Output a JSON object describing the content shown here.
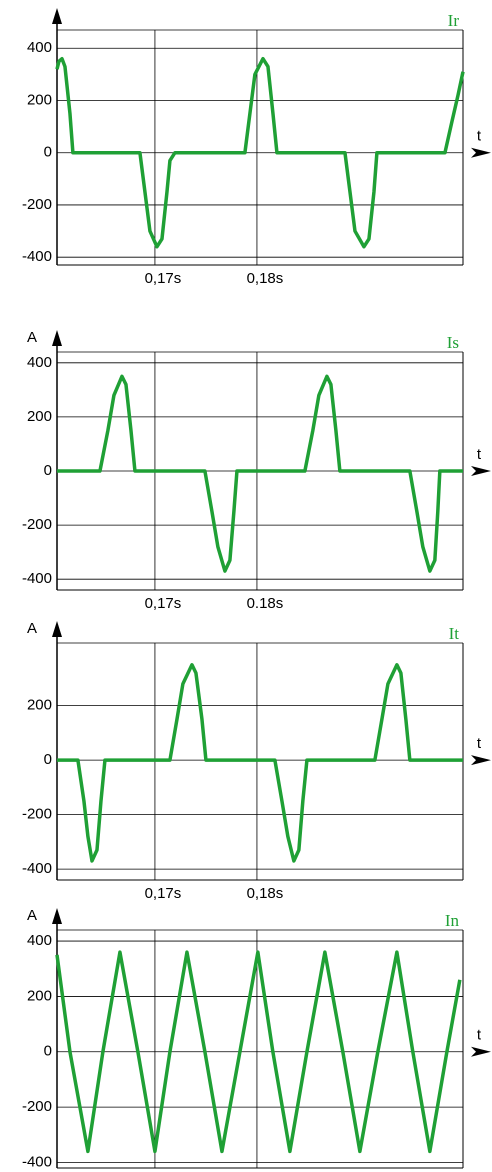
{
  "chart_data": [
    {
      "type": "line",
      "title": "Ir",
      "x_label": "t",
      "xlim": [
        0.1604,
        0.2002
      ],
      "ylim": [
        -430,
        470
      ],
      "xticks": [
        {
          "value": 0.17,
          "label": "0,17s"
        },
        {
          "value": 0.18,
          "label": "0,18s"
        }
      ],
      "yticks": [
        -400,
        -200,
        0,
        200,
        400
      ],
      "grid": true,
      "series": [
        {
          "color": "#1fa035",
          "x": [
            0.1604,
            0.16059,
            0.16089,
            0.16118,
            0.16167,
            0.16196,
            0.16853,
            0.16902,
            0.16951,
            0.1702,
            0.17069,
            0.17118,
            0.17147,
            0.17196,
            0.17882,
            0.17931,
            0.1798,
            0.18059,
            0.18108,
            0.18157,
            0.18196,
            0.18863,
            0.18912,
            0.18961,
            0.19049,
            0.19098,
            0.19147,
            0.19176,
            0.19843,
            0.19912,
            0.19971,
            0.2002
          ],
          "values": [
            320,
            350,
            360,
            330,
            150,
            0,
            0,
            -150,
            -300,
            -360,
            -330,
            -150,
            -30,
            0,
            0,
            150,
            300,
            360,
            330,
            150,
            0,
            0,
            -150,
            -300,
            -360,
            -330,
            -150,
            0,
            0,
            120,
            220,
            310
          ]
        }
      ]
    },
    {
      "type": "line",
      "title": "Is",
      "y_label": "A",
      "x_label": "t",
      "xlim": [
        0.1604,
        0.2002
      ],
      "ylim": [
        -440,
        440
      ],
      "xticks": [
        {
          "value": 0.17,
          "label": "0,17s"
        },
        {
          "value": 0.18,
          "label": "0.18s"
        }
      ],
      "yticks": [
        -400,
        -200,
        0,
        200,
        400
      ],
      "grid": true,
      "series": [
        {
          "color": "#1fa035",
          "x": [
            0.1604,
            0.16461,
            0.16539,
            0.16598,
            0.16677,
            0.16716,
            0.16765,
            0.16804,
            0.1749,
            0.17559,
            0.17617,
            0.17686,
            0.17735,
            0.17774,
            0.17804,
            0.1847,
            0.18548,
            0.18607,
            0.18686,
            0.18725,
            0.18774,
            0.18813,
            0.19499,
            0.19568,
            0.19626,
            0.19695,
            0.19744,
            0.19773,
            0.19793,
            0.2002
          ],
          "values": [
            0,
            0,
            150,
            280,
            350,
            320,
            150,
            0,
            0,
            -150,
            -280,
            -370,
            -330,
            -150,
            0,
            0,
            150,
            280,
            350,
            320,
            150,
            0,
            0,
            -150,
            -280,
            -370,
            -330,
            -150,
            0,
            0
          ]
        }
      ]
    },
    {
      "type": "line",
      "title": "It",
      "y_label": "A",
      "x_label": "t",
      "xlim": [
        0.1604,
        0.2002
      ],
      "ylim": [
        -440,
        430
      ],
      "xticks": [
        {
          "value": 0.17,
          "label": "0,17s"
        },
        {
          "value": 0.18,
          "label": "0,18s"
        }
      ],
      "yticks": [
        -400,
        -200,
        0,
        200
      ],
      "grid": true,
      "series": [
        {
          "color": "#1fa035",
          "x": [
            0.1604,
            0.16245,
            0.16304,
            0.16343,
            0.16383,
            0.16432,
            0.16471,
            0.1651,
            0.17147,
            0.17216,
            0.17274,
            0.17363,
            0.17402,
            0.17461,
            0.175,
            0.18176,
            0.18245,
            0.18303,
            0.18362,
            0.18411,
            0.1845,
            0.1849,
            0.19156,
            0.19225,
            0.19284,
            0.19372,
            0.19411,
            0.1946,
            0.19499,
            0.2002
          ],
          "values": [
            0,
            0,
            -150,
            -280,
            -370,
            -330,
            -150,
            0,
            0,
            150,
            280,
            350,
            320,
            150,
            0,
            0,
            -150,
            -280,
            -370,
            -330,
            -150,
            0,
            0,
            150,
            280,
            350,
            320,
            150,
            0,
            0
          ]
        }
      ]
    },
    {
      "type": "line",
      "title": "In",
      "y_label": "A",
      "x_label": "t",
      "xlim": [
        0.1604,
        0.2002
      ],
      "ylim": [
        -420,
        440
      ],
      "xticks": [
        {
          "value": 0.17,
          "label": "0,17s"
        },
        {
          "value": 0.18,
          "label": "0,18s"
        }
      ],
      "yticks": [
        -400,
        -200,
        0,
        200,
        400
      ],
      "grid": true,
      "series": [
        {
          "color": "#1fa035",
          "x": [
            0.1604,
            0.16167,
            0.16343,
            0.1649,
            0.16657,
            0.16833,
            0.17,
            0.17147,
            0.17314,
            0.1749,
            0.17657,
            0.17833,
            0.18009,
            0.18156,
            0.18323,
            0.1849,
            0.18666,
            0.18842,
            0.19009,
            0.19185,
            0.19372,
            0.19528,
            0.19695,
            0.19862,
            0.19989
          ],
          "values": [
            350,
            0,
            -360,
            0,
            360,
            0,
            -360,
            0,
            360,
            0,
            -360,
            0,
            360,
            0,
            -360,
            0,
            360,
            0,
            -360,
            0,
            360,
            0,
            -360,
            0,
            260
          ]
        }
      ]
    }
  ]
}
